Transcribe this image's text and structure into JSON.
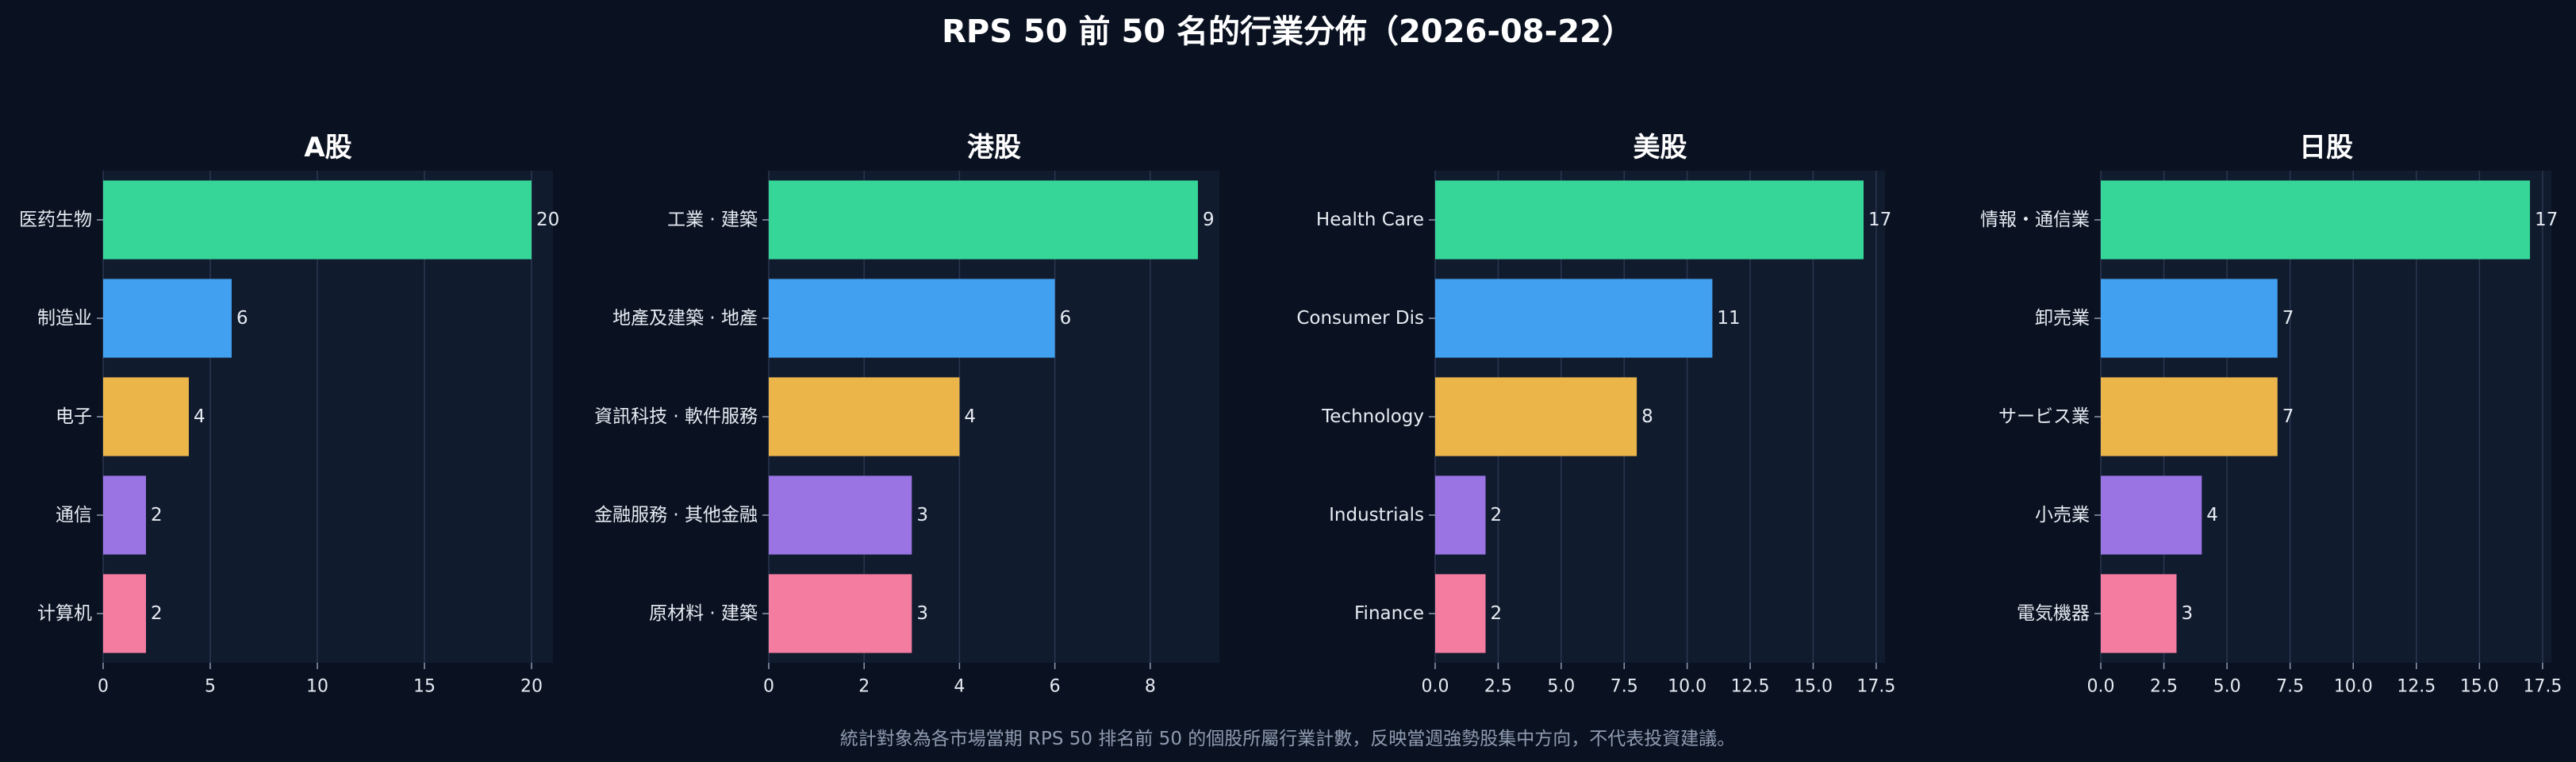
{
  "title": "RPS 50 前 50 名的行業分佈（2026-08-22）",
  "footnote": "統計對象為各市場當期 RPS 50 排名前 50 的個股所屬行業計數，反映當週強勢股集中方向，不代表投資建議。",
  "colors": {
    "background": "#0a1221",
    "plot_background": "#111b2e",
    "grid": "#2a3650",
    "text": "#e6ebf2",
    "muted": "#8f9bb0",
    "bars": [
      "#36d699",
      "#42a0f0",
      "#ebb54a",
      "#9974e2",
      "#f37ca0"
    ]
  },
  "chart_data": [
    {
      "type": "bar",
      "orientation": "horizontal",
      "title": "A股",
      "categories": [
        "医药生物",
        "制造业",
        "电子",
        "通信",
        "计算机"
      ],
      "values": [
        20,
        6,
        4,
        2,
        2
      ],
      "xlim": [
        0,
        21
      ],
      "xticks": [
        0,
        5,
        10,
        15,
        20
      ],
      "xtick_labels": [
        "0",
        "5",
        "10",
        "15",
        "20"
      ],
      "grid": "vertical"
    },
    {
      "type": "bar",
      "orientation": "horizontal",
      "title": "港股",
      "categories": [
        "工業 · 建築",
        "地產及建築 · 地產",
        "資訊科技 · 軟件服務",
        "金融服務 · 其他金融",
        "原材料 · 建築"
      ],
      "values": [
        9,
        6,
        4,
        3,
        3
      ],
      "xlim": [
        0,
        9.45
      ],
      "xticks": [
        0,
        2,
        4,
        6,
        8
      ],
      "xtick_labels": [
        "0",
        "2",
        "4",
        "6",
        "8"
      ],
      "grid": "vertical"
    },
    {
      "type": "bar",
      "orientation": "horizontal",
      "title": "美股",
      "categories": [
        "Health Care",
        "Consumer Dis",
        "Technology",
        "Industrials",
        "Finance"
      ],
      "values": [
        17,
        11,
        8,
        2,
        2
      ],
      "xlim": [
        0,
        17.85
      ],
      "xticks": [
        0,
        2.5,
        5,
        7.5,
        10,
        12.5,
        15,
        17.5
      ],
      "xtick_labels": [
        "0.0",
        "2.5",
        "5.0",
        "7.5",
        "10.0",
        "12.5",
        "15.0",
        "17.5"
      ],
      "grid": "vertical"
    },
    {
      "type": "bar",
      "orientation": "horizontal",
      "title": "日股",
      "categories": [
        "情報・通信業",
        "卸売業",
        "サービス業",
        "小売業",
        "電気機器"
      ],
      "values": [
        17,
        7,
        7,
        4,
        3
      ],
      "xlim": [
        0,
        17.85
      ],
      "xticks": [
        0,
        2.5,
        5,
        7.5,
        10,
        12.5,
        15,
        17.5
      ],
      "xtick_labels": [
        "0.0",
        "2.5",
        "5.0",
        "7.5",
        "10.0",
        "12.5",
        "15.0",
        "17.5"
      ],
      "grid": "vertical"
    }
  ]
}
